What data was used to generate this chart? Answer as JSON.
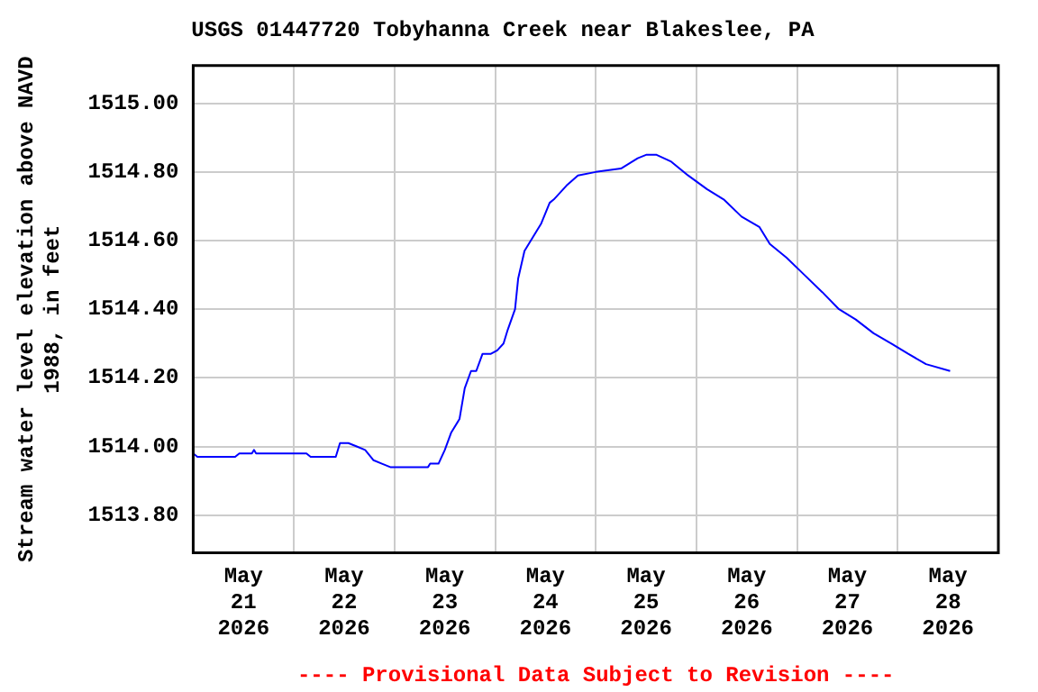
{
  "chart_data": {
    "type": "line",
    "title": "USGS 01447720 Tobyhanna Creek near Blakeslee, PA",
    "ylabel": "Stream water level elevation above NAVD 1988, in feet",
    "annotations": [
      "---- Provisional Data Subject to Revision ----"
    ],
    "x": [
      "2026-05-21T00:00",
      "2026-05-21T01:00",
      "2026-05-21T10:00",
      "2026-05-21T11:00",
      "2026-05-21T14:00",
      "2026-05-21T14:30",
      "2026-05-21T15:00",
      "2026-05-22T03:00",
      "2026-05-22T04:00",
      "2026-05-22T10:00",
      "2026-05-22T11:00",
      "2026-05-22T13:00",
      "2026-05-22T15:00",
      "2026-05-22T17:00",
      "2026-05-22T19:00",
      "2026-05-22T21:00",
      "2026-05-22T23:00",
      "2026-05-23T08:00",
      "2026-05-23T08:30",
      "2026-05-23T10:30",
      "2026-05-23T12:00",
      "2026-05-23T13:30",
      "2026-05-23T15:30",
      "2026-05-23T16:45",
      "2026-05-23T18:15",
      "2026-05-23T19:30",
      "2026-05-23T21:00",
      "2026-05-23T23:00",
      "2026-05-24T00:30",
      "2026-05-24T02:00",
      "2026-05-24T03:00",
      "2026-05-24T04:45",
      "2026-05-24T05:30",
      "2026-05-24T07:00",
      "2026-05-24T09:00",
      "2026-05-24T11:00",
      "2026-05-24T13:00",
      "2026-05-24T14:00",
      "2026-05-24T17:00",
      "2026-05-24T19:45",
      "2026-05-25T00:00",
      "2026-05-25T06:00",
      "2026-05-25T10:00",
      "2026-05-25T12:00",
      "2026-05-25T14:30",
      "2026-05-25T18:00",
      "2026-05-25T22:00",
      "2026-05-26T02:30",
      "2026-05-26T06:30",
      "2026-05-26T10:45",
      "2026-05-26T15:00",
      "2026-05-26T17:30",
      "2026-05-26T21:30",
      "2026-05-27T01:45",
      "2026-05-27T06:00",
      "2026-05-27T10:00",
      "2026-05-27T14:00",
      "2026-05-27T18:15",
      "2026-05-27T22:30",
      "2026-05-28T02:30",
      "2026-05-28T06:45",
      "2026-05-28T12:30"
    ],
    "series": [
      {
        "color": "#0000ff",
        "values": [
          1513.98,
          1513.97,
          1513.97,
          1513.98,
          1513.98,
          1513.99,
          1513.98,
          1513.98,
          1513.97,
          1513.97,
          1514.01,
          1514.01,
          1514.0,
          1513.99,
          1513.96,
          1513.95,
          1513.94,
          1513.94,
          1513.95,
          1513.95,
          1513.99,
          1514.04,
          1514.08,
          1514.17,
          1514.22,
          1514.22,
          1514.27,
          1514.27,
          1514.28,
          1514.3,
          1514.34,
          1514.4,
          1514.49,
          1514.57,
          1514.61,
          1514.65,
          1514.71,
          1514.72,
          1514.76,
          1514.79,
          1514.8,
          1514.81,
          1514.84,
          1514.85,
          1514.85,
          1514.83,
          1514.79,
          1514.75,
          1514.72,
          1514.67,
          1514.64,
          1514.59,
          1514.55,
          1514.5,
          1514.45,
          1514.4,
          1514.37,
          1514.33,
          1514.3,
          1514.27,
          1514.24,
          1514.22
        ]
      }
    ],
    "xlim": [
      "2026-05-21T00:00",
      "2026-05-29T00:00"
    ],
    "xticks": [
      {
        "value": "2026-05-21T00:00",
        "label": null
      },
      {
        "value": "2026-05-21T12:00",
        "label": "May 21 2026"
      },
      {
        "value": "2026-05-22T00:00",
        "label": null
      },
      {
        "value": "2026-05-22T12:00",
        "label": "May 22 2026"
      },
      {
        "value": "2026-05-23T00:00",
        "label": null
      },
      {
        "value": "2026-05-23T12:00",
        "label": "May 23 2026"
      },
      {
        "value": "2026-05-24T00:00",
        "label": null
      },
      {
        "value": "2026-05-24T12:00",
        "label": "May 24 2026"
      },
      {
        "value": "2026-05-25T00:00",
        "label": null
      },
      {
        "value": "2026-05-25T12:00",
        "label": "May 25 2026"
      },
      {
        "value": "2026-05-26T00:00",
        "label": null
      },
      {
        "value": "2026-05-26T12:00",
        "label": "May 26 2026"
      },
      {
        "value": "2026-05-27T00:00",
        "label": null
      },
      {
        "value": "2026-05-27T12:00",
        "label": "May 27 2026"
      },
      {
        "value": "2026-05-28T00:00",
        "label": null
      },
      {
        "value": "2026-05-28T12:00",
        "label": "May 28 2026"
      },
      {
        "value": "2026-05-29T00:00",
        "label": null
      }
    ],
    "ylim": [
      1513.69,
      1515.11
    ],
    "yticks": [
      {
        "value": 1513.8,
        "label": "1513.80"
      },
      {
        "value": 1514.0,
        "label": "1514.00"
      },
      {
        "value": 1514.2,
        "label": "1514.20"
      },
      {
        "value": 1514.4,
        "label": "1514.40"
      },
      {
        "value": 1514.6,
        "label": "1514.60"
      },
      {
        "value": 1514.8,
        "label": "1514.80"
      },
      {
        "value": 1515.0,
        "label": "1515.00"
      }
    ],
    "grid": true,
    "legend": false,
    "marker": "none",
    "line_style": "solid"
  }
}
